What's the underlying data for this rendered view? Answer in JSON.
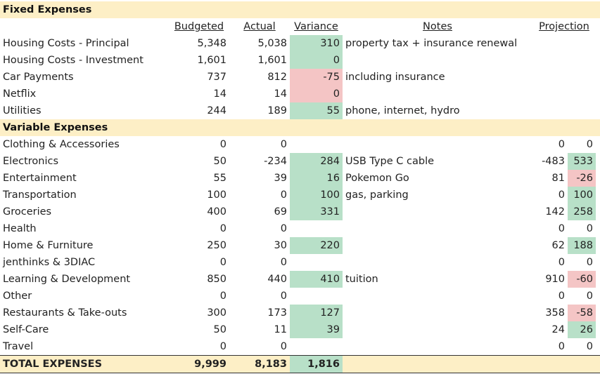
{
  "fixed_title": "Fixed Expenses",
  "headers": {
    "budgeted": "Budgeted",
    "actual": "Actual",
    "variance": "Variance",
    "notes": "Notes",
    "projection": "Projection"
  },
  "fixed": [
    {
      "label": "Housing Costs - Principal",
      "budgeted": "5,348",
      "actual": "5,038",
      "variance": "310",
      "variance_status": "pos",
      "note": "property tax + insurance renewal"
    },
    {
      "label": "Housing Costs - Investment",
      "budgeted": "1,601",
      "actual": "1,601",
      "variance": "0",
      "variance_status": "pos",
      "note": ""
    },
    {
      "label": "Car Payments",
      "budgeted": "737",
      "actual": "812",
      "variance": "-75",
      "variance_status": "neg",
      "note": "including insurance"
    },
    {
      "label": "Netflix",
      "budgeted": "14",
      "actual": "14",
      "variance": "0",
      "variance_status": "neg",
      "note": ""
    },
    {
      "label": "Utilities",
      "budgeted": "244",
      "actual": "189",
      "variance": "55",
      "variance_status": "pos",
      "note": "phone, internet, hydro"
    }
  ],
  "variable_title": "Variable Expenses",
  "variable": [
    {
      "label": "Clothing & Accessories",
      "budgeted": "0",
      "actual": "0",
      "variance": "",
      "variance_status": "none",
      "note": "",
      "proj1": "0",
      "proj2": "0",
      "proj2_status": "none"
    },
    {
      "label": "Electronics",
      "budgeted": "50",
      "actual": "-234",
      "variance": "284",
      "variance_status": "pos",
      "note": "USB Type C cable",
      "proj1": "-483",
      "proj2": "533",
      "proj2_status": "pos"
    },
    {
      "label": "Entertainment",
      "budgeted": "55",
      "actual": "39",
      "variance": "16",
      "variance_status": "pos",
      "note": "Pokemon Go",
      "proj1": "81",
      "proj2": "-26",
      "proj2_status": "neg"
    },
    {
      "label": "Transportation",
      "budgeted": "100",
      "actual": "0",
      "variance": "100",
      "variance_status": "pos",
      "note": "gas, parking",
      "proj1": "0",
      "proj2": "100",
      "proj2_status": "pos"
    },
    {
      "label": "Groceries",
      "budgeted": "400",
      "actual": "69",
      "variance": "331",
      "variance_status": "pos",
      "note": "",
      "proj1": "142",
      "proj2": "258",
      "proj2_status": "pos"
    },
    {
      "label": "Health",
      "budgeted": "0",
      "actual": "0",
      "variance": "",
      "variance_status": "none",
      "note": "",
      "proj1": "0",
      "proj2": "0",
      "proj2_status": "none"
    },
    {
      "label": "Home & Furniture",
      "budgeted": "250",
      "actual": "30",
      "variance": "220",
      "variance_status": "pos",
      "note": "",
      "proj1": "62",
      "proj2": "188",
      "proj2_status": "pos"
    },
    {
      "label": "jenthinks & 3DIAC",
      "budgeted": "0",
      "actual": "0",
      "variance": "",
      "variance_status": "none",
      "note": "",
      "proj1": "0",
      "proj2": "0",
      "proj2_status": "none"
    },
    {
      "label": "Learning & Development",
      "budgeted": "850",
      "actual": "440",
      "variance": "410",
      "variance_status": "pos",
      "note": "tuition",
      "proj1": "910",
      "proj2": "-60",
      "proj2_status": "neg"
    },
    {
      "label": "Other",
      "budgeted": "0",
      "actual": "0",
      "variance": "",
      "variance_status": "none",
      "note": "",
      "proj1": "0",
      "proj2": "0",
      "proj2_status": "none"
    },
    {
      "label": "Restaurants & Take-outs",
      "budgeted": "300",
      "actual": "173",
      "variance": "127",
      "variance_status": "pos",
      "note": "",
      "proj1": "358",
      "proj2": "-58",
      "proj2_status": "neg"
    },
    {
      "label": "Self-Care",
      "budgeted": "50",
      "actual": "11",
      "variance": "39",
      "variance_status": "pos",
      "note": "",
      "proj1": "24",
      "proj2": "26",
      "proj2_status": "pos"
    },
    {
      "label": "Travel",
      "budgeted": "0",
      "actual": "0",
      "variance": "",
      "variance_status": "none",
      "note": "",
      "proj1": "0",
      "proj2": "0",
      "proj2_status": "none"
    }
  ],
  "total": {
    "label": "TOTAL EXPENSES",
    "budgeted": "9,999",
    "actual": "8,183",
    "variance": "1,816",
    "variance_status": "pos"
  },
  "colors": {
    "section_bg": "#fdefc6",
    "positive": "#b8e0c8",
    "negative": "#f4c5c5"
  }
}
